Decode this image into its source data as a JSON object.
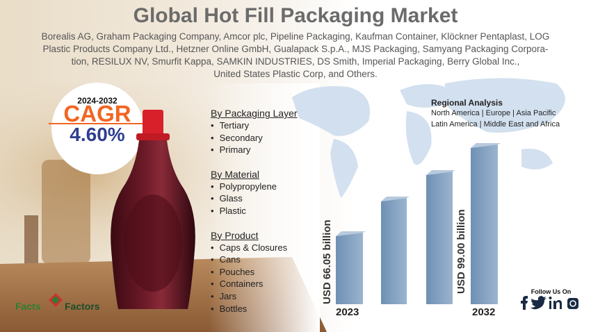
{
  "header": {
    "title": "Global Hot Fill Packaging Market",
    "companies": [
      "Borealis AG, Graham Packaging Company, Amcor plc, Pipeline Packaging, Kaufman Container, Klöckner Pentaplast, LOG",
      "Plastic Products Company Ltd., Hetzner Online GmbH, Gualapack S.p.A., MJS Packaging, Samyang Packaging Corpora-",
      "tion, RESILUX NV, Smurfit Kappa, SAMKIN INDUSTRIES, DS Smith, Imperial Packaging, Berry Global Inc.,",
      "United States Plastic Corp, and Others."
    ]
  },
  "cagr": {
    "period": "2024-2032",
    "label": "CAGR",
    "value": "4.60%"
  },
  "segments": [
    {
      "title": "By Packaging Layer",
      "items": [
        "Tertiary",
        "Secondary",
        "Primary"
      ]
    },
    {
      "title": "By Material",
      "items": [
        "Polypropylene",
        "Glass",
        "Plastic"
      ]
    },
    {
      "title": "By Product",
      "items": [
        "Caps & Closures",
        "Cans",
        "Pouches",
        "Containers",
        "Jars",
        "Bottles"
      ]
    }
  ],
  "regional": {
    "title": "Regional Analysis",
    "lines": [
      "North America | Europe | Asia Pacific",
      "Latin America | Middle East and Africa"
    ]
  },
  "market": {
    "start": {
      "year": "2023",
      "label": "USD 66.05 billion"
    },
    "end": {
      "year": "2032",
      "label": "USD 99.00 billion"
    }
  },
  "follow": "Follow Us On",
  "brand": {
    "first": "Facts",
    "second": "Factors"
  }
}
